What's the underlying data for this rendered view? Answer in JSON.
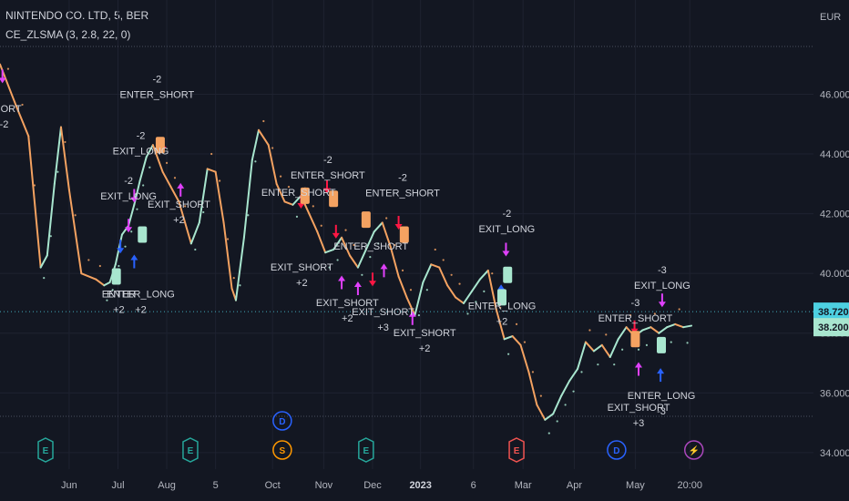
{
  "header": {
    "symbol_line": "NINTENDO CO. LTD, 5, BER",
    "indicator_line": "CE_ZLSMA (3, 2.8, 22, 0)"
  },
  "currency": "EUR",
  "colors": {
    "background": "#131722",
    "grid": "#1e2230",
    "rising": "#a8e6cf",
    "falling": "#f4a261",
    "exit": "#e040fb",
    "short_arrow": "#ff1744",
    "long_arrow": "#2962ff",
    "badge_price": "#4dd0e1",
    "badge_last": "#a8e6cf"
  },
  "chart_data": {
    "type": "line",
    "title": "",
    "ylim": [
      33.6,
      47.6
    ],
    "y_ticks": [
      "46.000",
      "44.000",
      "42.000",
      "40.000",
      "38.000",
      "36.000",
      "34.000"
    ],
    "y_tick_values": [
      46,
      44,
      42,
      40,
      38,
      36,
      34
    ],
    "x_ticks": [
      {
        "label": "Jun",
        "t": 0.085,
        "bold": false
      },
      {
        "label": "Jul",
        "t": 0.145,
        "bold": false
      },
      {
        "label": "Aug",
        "t": 0.205,
        "bold": false
      },
      {
        "label": "5",
        "t": 0.265,
        "bold": false
      },
      {
        "label": "Oct",
        "t": 0.335,
        "bold": false
      },
      {
        "label": "Nov",
        "t": 0.398,
        "bold": false
      },
      {
        "label": "Dec",
        "t": 0.458,
        "bold": false
      },
      {
        "label": "2023",
        "t": 0.517,
        "bold": true
      },
      {
        "label": "6",
        "t": 0.582,
        "bold": false
      },
      {
        "label": "Mar",
        "t": 0.643,
        "bold": false
      },
      {
        "label": "Apr",
        "t": 0.706,
        "bold": false
      },
      {
        "label": "May",
        "t": 0.781,
        "bold": false
      },
      {
        "label": "20:00",
        "t": 0.848,
        "bold": false
      }
    ],
    "series": [
      {
        "values": [
          [
            0.0,
            47.0
          ],
          [
            0.02,
            45.6
          ],
          [
            0.035,
            44.6
          ],
          [
            0.05,
            40.2
          ],
          [
            0.058,
            40.6
          ],
          [
            0.067,
            43.0
          ],
          [
            0.075,
            44.9
          ],
          [
            0.085,
            42.8
          ],
          [
            0.1,
            40.0
          ],
          [
            0.118,
            39.8
          ],
          [
            0.128,
            39.6
          ],
          [
            0.135,
            39.7
          ],
          [
            0.142,
            40.3
          ],
          [
            0.15,
            41.3
          ],
          [
            0.158,
            41.6
          ],
          [
            0.165,
            42.3
          ],
          [
            0.172,
            43.1
          ],
          [
            0.18,
            43.9
          ],
          [
            0.188,
            44.3
          ],
          [
            0.2,
            43.4
          ],
          [
            0.21,
            42.9
          ],
          [
            0.22,
            42.4
          ],
          [
            0.235,
            41.0
          ],
          [
            0.245,
            41.7
          ],
          [
            0.255,
            43.5
          ],
          [
            0.265,
            43.4
          ],
          [
            0.275,
            41.7
          ],
          [
            0.285,
            39.5
          ],
          [
            0.29,
            39.1
          ],
          [
            0.3,
            41.2
          ],
          [
            0.31,
            43.8
          ],
          [
            0.318,
            44.8
          ],
          [
            0.33,
            44.3
          ],
          [
            0.34,
            43.0
          ],
          [
            0.35,
            42.4
          ],
          [
            0.36,
            42.3
          ],
          [
            0.37,
            42.6
          ],
          [
            0.38,
            42.0
          ],
          [
            0.39,
            41.4
          ],
          [
            0.4,
            40.7
          ],
          [
            0.41,
            40.8
          ],
          [
            0.42,
            41.2
          ],
          [
            0.43,
            40.6
          ],
          [
            0.44,
            40.2
          ],
          [
            0.45,
            40.8
          ],
          [
            0.46,
            41.4
          ],
          [
            0.47,
            41.7
          ],
          [
            0.48,
            40.9
          ],
          [
            0.49,
            39.9
          ],
          [
            0.5,
            39.2
          ],
          [
            0.51,
            38.6
          ],
          [
            0.52,
            39.7
          ],
          [
            0.53,
            40.3
          ],
          [
            0.54,
            40.2
          ],
          [
            0.55,
            39.6
          ],
          [
            0.56,
            39.2
          ],
          [
            0.57,
            39.0
          ],
          [
            0.58,
            39.4
          ],
          [
            0.59,
            39.8
          ],
          [
            0.6,
            40.1
          ],
          [
            0.61,
            38.8
          ],
          [
            0.62,
            37.8
          ],
          [
            0.63,
            37.9
          ],
          [
            0.64,
            37.6
          ],
          [
            0.65,
            36.7
          ],
          [
            0.66,
            35.6
          ],
          [
            0.67,
            35.1
          ],
          [
            0.68,
            35.3
          ],
          [
            0.69,
            35.9
          ],
          [
            0.7,
            36.4
          ],
          [
            0.71,
            36.8
          ],
          [
            0.72,
            37.7
          ],
          [
            0.73,
            37.4
          ],
          [
            0.74,
            37.6
          ],
          [
            0.75,
            37.2
          ],
          [
            0.76,
            37.8
          ],
          [
            0.77,
            38.2
          ],
          [
            0.78,
            37.9
          ],
          [
            0.79,
            38.1
          ],
          [
            0.8,
            38.2
          ],
          [
            0.81,
            38.0
          ],
          [
            0.82,
            38.2
          ],
          [
            0.83,
            38.3
          ],
          [
            0.84,
            38.2
          ],
          [
            0.85,
            38.25
          ]
        ]
      }
    ],
    "last_price_label": "38.720",
    "last_price_value": 38.72,
    "line_last_label": "38.200",
    "line_last_value": 38.2,
    "annotations": [
      {
        "lines": [
          "SHORT",
          "-2"
        ],
        "t": 0.005,
        "v": 45.4
      },
      {
        "lines": [
          "-2",
          "ENTER_SHORT"
        ],
        "t": 0.193,
        "v": 46.4
      },
      {
        "lines": [
          "-2",
          "EXIT_LONG"
        ],
        "t": 0.173,
        "v": 44.5
      },
      {
        "lines": [
          "-2",
          "EXIT_LONG"
        ],
        "t": 0.158,
        "v": 43.0
      },
      {
        "lines": [
          "EXIT_SHORT",
          "+2"
        ],
        "t": 0.22,
        "v": 42.2
      },
      {
        "lines": [
          "-2",
          "ENTER_SHORT"
        ],
        "t": 0.403,
        "v": 43.7
      },
      {
        "lines": [
          "ENTER_SHORT"
        ],
        "t": 0.367,
        "v": 42.6
      },
      {
        "lines": [
          "-2",
          "ENTER_SHORT"
        ],
        "t": 0.495,
        "v": 43.1
      },
      {
        "lines": [
          "ENTER_SHORT"
        ],
        "t": 0.456,
        "v": 40.8
      },
      {
        "lines": [
          "EXIT_SHORT",
          "+2"
        ],
        "t": 0.371,
        "v": 40.1
      },
      {
        "lines": [
          "EXIT_SHORT",
          "+2"
        ],
        "t": 0.427,
        "v": 38.9
      },
      {
        "lines": [
          "EXIT_SHORT",
          "+3"
        ],
        "t": 0.471,
        "v": 38.6
      },
      {
        "lines": [
          "EXIT_SHORT",
          "+2"
        ],
        "t": 0.522,
        "v": 37.9
      },
      {
        "lines": [
          "-2",
          "EXIT_LONG"
        ],
        "t": 0.623,
        "v": 41.9
      },
      {
        "lines": [
          "ENTER_LONG",
          "+2"
        ],
        "t": 0.617,
        "v": 38.8
      },
      {
        "lines": [
          "ENTER",
          "+2"
        ],
        "t": 0.146,
        "v": 39.2
      },
      {
        "lines": [
          "ENTER_LONG",
          "+2"
        ],
        "t": 0.173,
        "v": 39.2
      },
      {
        "lines": [
          "-3",
          "EXIT_LONG"
        ],
        "t": 0.814,
        "v": 40.0
      },
      {
        "lines": [
          "-3",
          "ENTER_SHORT"
        ],
        "t": 0.781,
        "v": 38.9
      },
      {
        "lines": [
          "ENTER_LONG",
          "-3"
        ],
        "t": 0.813,
        "v": 35.8
      },
      {
        "lines": [
          "EXIT_SHORT",
          "+3"
        ],
        "t": 0.785,
        "v": 35.4
      }
    ],
    "event_markers": [
      {
        "letter": "E",
        "t": 0.056,
        "kind": "earnings",
        "color": "#26a69a"
      },
      {
        "letter": "E",
        "t": 0.234,
        "kind": "earnings",
        "color": "#26a69a"
      },
      {
        "letter": "E",
        "t": 0.45,
        "kind": "earnings",
        "color": "#26a69a"
      },
      {
        "letter": "E",
        "t": 0.635,
        "kind": "earnings",
        "color": "#ef5350"
      },
      {
        "letter": "D",
        "t": 0.347,
        "kind": "dividend-upper",
        "color": "#2962ff"
      },
      {
        "letter": "S",
        "t": 0.347,
        "kind": "split",
        "color": "#ff9800"
      },
      {
        "letter": "D",
        "t": 0.758,
        "kind": "dividend",
        "color": "#2962ff"
      },
      {
        "letter": "⚡",
        "t": 0.853,
        "kind": "news",
        "color": "#ab47bc"
      }
    ]
  }
}
